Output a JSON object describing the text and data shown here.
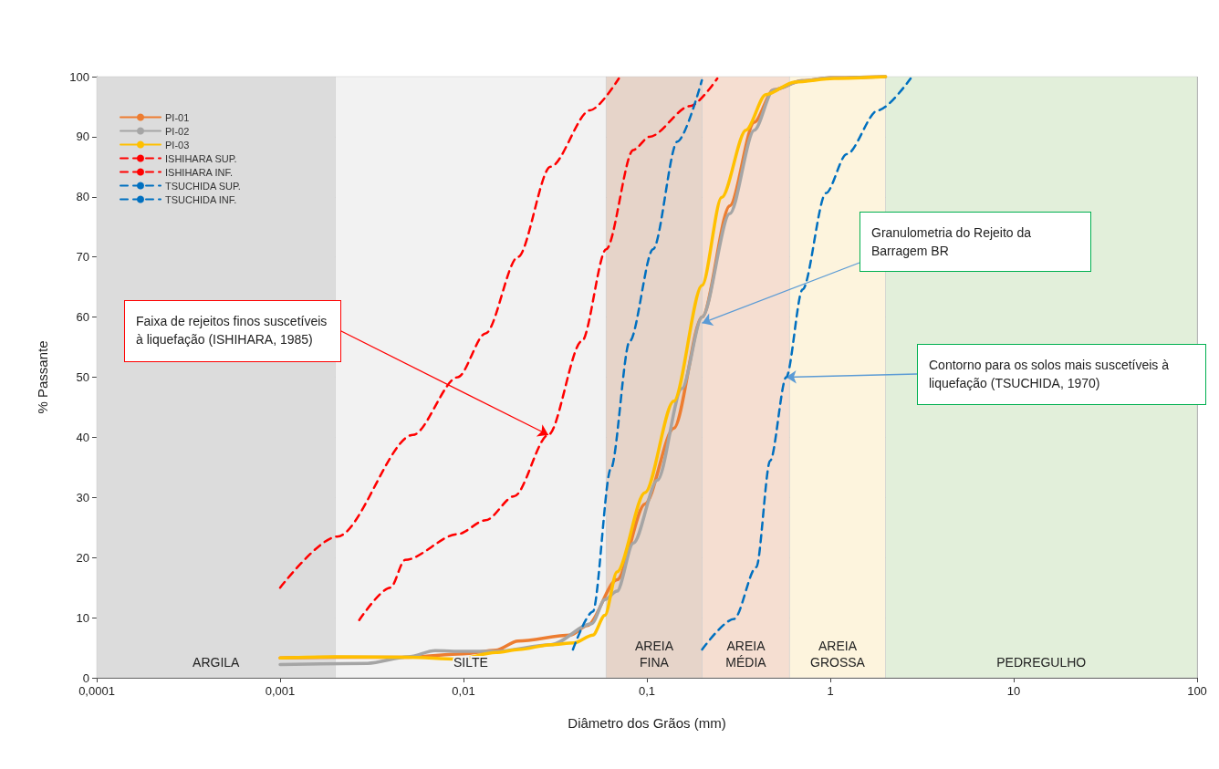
{
  "chart_data": {
    "type": "line",
    "xlabel": "Diâmetro dos Grãos (mm)",
    "ylabel": "% Passante",
    "log": "x",
    "xlim": [
      0.0001,
      100
    ],
    "xticks": [
      {
        "value": 0.0001,
        "label": "0,0001"
      },
      {
        "value": 0.001,
        "label": "0,001"
      },
      {
        "value": 0.01,
        "label": "0,01"
      },
      {
        "value": 0.1,
        "label": "0,1"
      },
      1,
      10,
      100
    ],
    "ylim": [
      0,
      100
    ],
    "yticks": [
      0,
      10,
      20,
      30,
      40,
      50,
      60,
      70,
      80,
      90,
      100
    ],
    "grid": true,
    "legend": "top left",
    "marker": "none",
    "series": [
      {
        "name": "PI-01",
        "color": "#ed7d31",
        "line_style": "solid",
        "x": [
          0.001,
          0.002,
          0.005,
          0.01,
          0.015,
          0.0198,
          0.0383,
          0.0473,
          0.0687,
          0.0976,
          0.1401,
          0.2,
          0.283,
          0.385,
          0.49,
          0.7,
          1.0,
          2.0
        ],
        "values": [
          3.3,
          3.4,
          3.4,
          4.0,
          4.6,
          6.1,
          7.1,
          8.7,
          16.3,
          28.9,
          41.5,
          60,
          78.5,
          92.4,
          97.8,
          99.3,
          99.8,
          100
        ]
      },
      {
        "name": "PI-02",
        "color": "#a5a5a5",
        "line_style": "solid",
        "x": [
          0.001,
          0.003,
          0.005,
          0.007,
          0.01,
          0.015,
          0.03,
          0.05,
          0.059,
          0.0687,
          0.0843,
          0.1142,
          0.155,
          0.2,
          0.283,
          0.385,
          0.49,
          0.7,
          1.0,
          2.0
        ],
        "values": [
          2.2,
          2.4,
          3.5,
          4.5,
          4.4,
          4.4,
          5.5,
          9,
          13,
          14.4,
          22.4,
          32.9,
          48.1,
          60,
          77.2,
          91.1,
          97.8,
          99.3,
          99.8,
          100
        ]
      },
      {
        "name": "PI-03",
        "color": "#ffc000",
        "line_style": "solid",
        "x": [
          0.001,
          0.002,
          0.005,
          0.0093,
          0.015,
          0.02,
          0.03,
          0.04,
          0.0507,
          0.059,
          0.0687,
          0.0976,
          0.1401,
          0.2,
          0.2555,
          0.3469,
          0.4453,
          0.6397,
          1.05,
          2.0
        ],
        "values": [
          3.3,
          3.5,
          3.4,
          3.1,
          4.2,
          4.7,
          5.5,
          5.8,
          7.1,
          10.4,
          17.6,
          30.8,
          46,
          65.3,
          79.9,
          91.1,
          97,
          99.1,
          99.7,
          100
        ]
      },
      {
        "name": "ISHIHARA SUP.",
        "color": "#ff0000",
        "line_style": "dashed",
        "x": [
          0.001,
          0.00205,
          0.0053,
          0.0093,
          0.0132,
          0.0198,
          0.0298,
          0.049,
          0.0703
        ],
        "values": [
          15,
          23.5,
          40.4,
          50,
          57.3,
          70,
          85,
          94.4,
          99.7
        ]
      },
      {
        "name": "ISHIHARA INF.",
        "color": "#ff0000",
        "line_style": "dashed",
        "x": [
          0.0027,
          0.004,
          0.0048,
          0.0093,
          0.0132,
          0.0189,
          0.029,
          0.0442,
          0.06,
          0.0843,
          0.1033,
          0.172,
          0.242
        ],
        "values": [
          9.6,
          15,
          19.6,
          23.9,
          26.2,
          30.2,
          40.4,
          56,
          71.3,
          87.8,
          90,
          95.1,
          99.7
        ]
      },
      {
        "name": "TSUCHIDA SUP.",
        "color": "#0070c0",
        "line_style": "dashed",
        "x": [
          0.0395,
          0.0507,
          0.0636,
          0.0806,
          0.1081,
          0.1466,
          0.1995
        ],
        "values": [
          4.7,
          11,
          34.8,
          56,
          71.3,
          89.2,
          99.4
        ]
      },
      {
        "name": "TSUCHIDA INF.",
        "color": "#0070c0",
        "line_style": "dashed",
        "x": [
          0.2,
          0.299,
          0.395,
          0.47,
          0.575,
          0.706,
          0.946,
          1.228,
          1.82,
          2.74
        ],
        "values": [
          4.7,
          9.8,
          18.4,
          36.1,
          50,
          64.6,
          80.6,
          87.1,
          94.4,
          99.7
        ]
      }
    ],
    "bands": [
      {
        "axis": "x",
        "from": 0.0001,
        "to": 0.002,
        "label": "ARGILA",
        "color": "#dcdcdc"
      },
      {
        "axis": "x",
        "from": 0.002,
        "to": 0.06,
        "label": "SILTE",
        "color": "#f2f2f2"
      },
      {
        "axis": "x",
        "from": 0.06,
        "to": 0.2,
        "label": "AREIA FINA",
        "color": "#e6d4c9"
      },
      {
        "axis": "x",
        "from": 0.2,
        "to": 0.6,
        "label": "AREIA MÉDIA",
        "color": "#f5ded1"
      },
      {
        "axis": "x",
        "from": 0.6,
        "to": 2,
        "label": "AREIA GROSSA",
        "color": "#fdf4dd"
      },
      {
        "axis": "x",
        "from": 2,
        "to": 100,
        "label": "PEDREGULHO",
        "color": "#e2efda"
      }
    ],
    "annotations": [
      {
        "text": "Faixa de rejeitos finos suscetíveis à liquefação (ISHIHARA, 1985)",
        "x": 0.029,
        "y": 40.4
      },
      {
        "text": "Granulometria do Rejeito da Barragem BR",
        "x": 0.2,
        "y": 59
      },
      {
        "text": "Contorno para os solos mais suscetíveis à liquefação (TSUCHIDA, 1970)",
        "x": 0.575,
        "y": 50
      }
    ]
  }
}
